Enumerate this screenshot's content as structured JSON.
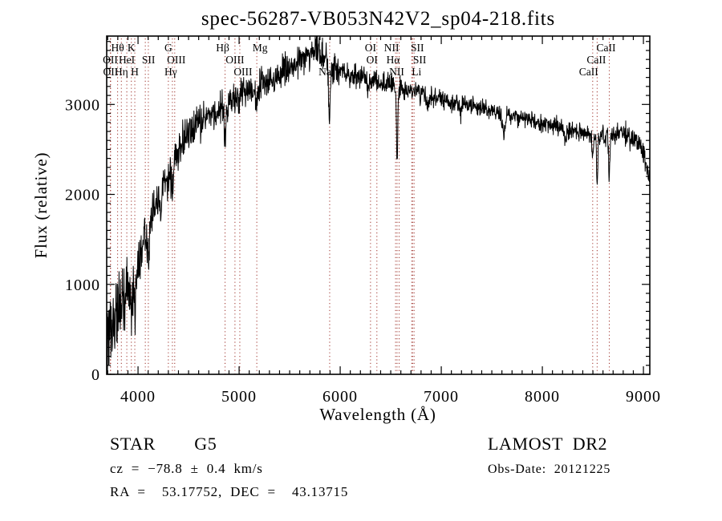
{
  "title": "spec-56287-VB053N42V2_sp04-218.fits",
  "footer": {
    "class_label": "STAR    G5",
    "cz": "cz = −78.8 ± 0.4 km/s",
    "radec": "RA =  53.17752, DEC =  43.13715",
    "survey": "LAMOST DR2",
    "obs_date": "Obs-Date: 20121225"
  },
  "chart_data": {
    "type": "line",
    "title": "spec-56287-VB053N42V2_sp04-218.fits",
    "xlabel": "Wavelength (Å)",
    "ylabel": "Flux (relative)",
    "xlim": [
      3690,
      9063
    ],
    "ylim": [
      0,
      3760
    ],
    "x_ticks": [
      4000,
      5000,
      6000,
      7000,
      8000,
      9000
    ],
    "y_ticks": [
      0,
      1000,
      2000,
      3000
    ],
    "x_minor_step": 100,
    "y_minor_step": 100,
    "grid": "off",
    "legend": "none",
    "trace_color": "#000000",
    "line_marker_color": "#9e322b",
    "spectral_lines": [
      {
        "label": "OII",
        "wavelength": 3726,
        "row": 2
      },
      {
        "label": "OII",
        "wavelength": 3729,
        "row": 3
      },
      {
        "label": "Hθ",
        "wavelength": 3798,
        "row": 1
      },
      {
        "label": "Hη",
        "wavelength": 3835,
        "row": 3
      },
      {
        "label": "HeI",
        "wavelength": 3889,
        "row": 2
      },
      {
        "label": "K",
        "wavelength": 3934,
        "row": 1
      },
      {
        "label": "H",
        "wavelength": 3968,
        "row": 3
      },
      {
        "label": "SII",
        "wavelength": 4072,
        "row": 2,
        "dx": 4
      },
      {
        "label": "",
        "wavelength": 4102,
        "row": 0
      },
      {
        "label": "G",
        "wavelength": 4300,
        "row": 1
      },
      {
        "label": "Hγ",
        "wavelength": 4340,
        "row": 3,
        "dx": -2
      },
      {
        "label": "OIII",
        "wavelength": 4363,
        "row": 2,
        "dx": 2
      },
      {
        "label": "Hβ",
        "wavelength": 4861,
        "row": 1,
        "dx": -3
      },
      {
        "label": "OIII",
        "wavelength": 4959,
        "row": 2
      },
      {
        "label": "OIII",
        "wavelength": 5007,
        "row": 3,
        "dx": 4
      },
      {
        "label": "Mg",
        "wavelength": 5175,
        "row": 1,
        "dx": 4
      },
      {
        "label": "Na",
        "wavelength": 5896,
        "row": 3,
        "dx": -6
      },
      {
        "label": "OI",
        "wavelength": 6300,
        "row": 1
      },
      {
        "label": "OI",
        "wavelength": 6363,
        "row": 2,
        "dx": -6
      },
      {
        "label": "NII",
        "wavelength": 6548,
        "row": 1,
        "dx": -5
      },
      {
        "label": "Hα",
        "wavelength": 6563,
        "row": 2,
        "dx": -5
      },
      {
        "label": "NII",
        "wavelength": 6583,
        "row": 3,
        "dx": -3
      },
      {
        "label": "Li",
        "wavelength": 6708,
        "row": 3,
        "dx": 6
      },
      {
        "label": "SII",
        "wavelength": 6716,
        "row": 1,
        "dx": 6
      },
      {
        "label": "SII",
        "wavelength": 6731,
        "row": 2,
        "dx": 7
      },
      {
        "label": "CaII",
        "wavelength": 8498,
        "row": 3,
        "dx": -5
      },
      {
        "label": "CaII",
        "wavelength": 8542,
        "row": 2,
        "dx": -1
      },
      {
        "label": "CaII",
        "wavelength": 8662,
        "row": 1,
        "dx": -4
      }
    ],
    "continuum": [
      [
        3690,
        380
      ],
      [
        3715,
        520
      ],
      [
        3740,
        460
      ],
      [
        3770,
        600
      ],
      [
        3800,
        700
      ],
      [
        3840,
        830
      ],
      [
        3880,
        960
      ],
      [
        3920,
        1030
      ],
      [
        3960,
        1080
      ],
      [
        4000,
        1250
      ],
      [
        4050,
        1450
      ],
      [
        4100,
        1600
      ],
      [
        4150,
        1780
      ],
      [
        4200,
        1950
      ],
      [
        4250,
        2080
      ],
      [
        4300,
        2280
      ],
      [
        4350,
        2380
      ],
      [
        4400,
        2480
      ],
      [
        4450,
        2590
      ],
      [
        4500,
        2680
      ],
      [
        4550,
        2740
      ],
      [
        4600,
        2800
      ],
      [
        4700,
        2880
      ],
      [
        4800,
        2940
      ],
      [
        4900,
        3010
      ],
      [
        5000,
        3110
      ],
      [
        5100,
        3170
      ],
      [
        5200,
        3220
      ],
      [
        5300,
        3270
      ],
      [
        5400,
        3330
      ],
      [
        5500,
        3400
      ],
      [
        5600,
        3480
      ],
      [
        5700,
        3570
      ],
      [
        5760,
        3630
      ],
      [
        5820,
        3560
      ],
      [
        5880,
        3450
      ],
      [
        5950,
        3380
      ],
      [
        6000,
        3350
      ],
      [
        6100,
        3320
      ],
      [
        6200,
        3300
      ],
      [
        6300,
        3270
      ],
      [
        6400,
        3240
      ],
      [
        6500,
        3210
      ],
      [
        6600,
        3170
      ],
      [
        6700,
        3140
      ],
      [
        6800,
        3130
      ],
      [
        6900,
        3090
      ],
      [
        7000,
        3060
      ],
      [
        7100,
        3030
      ],
      [
        7200,
        3000
      ],
      [
        7300,
        2980
      ],
      [
        7400,
        2950
      ],
      [
        7500,
        2920
      ],
      [
        7600,
        2890
      ],
      [
        7700,
        2870
      ],
      [
        7800,
        2840
      ],
      [
        7900,
        2820
      ],
      [
        8000,
        2790
      ],
      [
        8100,
        2760
      ],
      [
        8200,
        2730
      ],
      [
        8300,
        2700
      ],
      [
        8400,
        2680
      ],
      [
        8500,
        2660
      ],
      [
        8600,
        2650
      ],
      [
        8700,
        2650
      ],
      [
        8760,
        2700
      ],
      [
        8820,
        2660
      ],
      [
        8880,
        2620
      ],
      [
        8940,
        2600
      ],
      [
        9000,
        2500
      ],
      [
        9030,
        2320
      ],
      [
        9063,
        2150
      ]
    ],
    "noise_sigma": [
      [
        3690,
        250
      ],
      [
        3760,
        270
      ],
      [
        3850,
        220
      ],
      [
        3950,
        170
      ],
      [
        4050,
        140
      ],
      [
        4200,
        120
      ],
      [
        4400,
        105
      ],
      [
        4700,
        95
      ],
      [
        5000,
        88
      ],
      [
        5400,
        85
      ],
      [
        5800,
        88
      ],
      [
        6000,
        68
      ],
      [
        6300,
        62
      ],
      [
        6600,
        60
      ],
      [
        7000,
        52
      ],
      [
        7500,
        48
      ],
      [
        8000,
        48
      ],
      [
        8400,
        50
      ],
      [
        8700,
        55
      ],
      [
        9063,
        60
      ]
    ],
    "absorption_features": [
      [
        3934,
        330,
        10
      ],
      [
        3968,
        330,
        10
      ],
      [
        4102,
        240,
        9
      ],
      [
        4227,
        120,
        8
      ],
      [
        4300,
        130,
        15
      ],
      [
        4340,
        260,
        9
      ],
      [
        4861,
        300,
        9
      ],
      [
        5175,
        210,
        12
      ],
      [
        5893,
        600,
        8
      ],
      [
        6280,
        140,
        7
      ],
      [
        6563,
        760,
        7
      ],
      [
        6870,
        170,
        10
      ],
      [
        7190,
        100,
        10
      ],
      [
        7620,
        200,
        13
      ],
      [
        8230,
        110,
        12
      ],
      [
        8498,
        280,
        6
      ],
      [
        8542,
        580,
        6
      ],
      [
        8662,
        470,
        6
      ]
    ],
    "noise_seed": 56287,
    "sample_step": 3
  }
}
